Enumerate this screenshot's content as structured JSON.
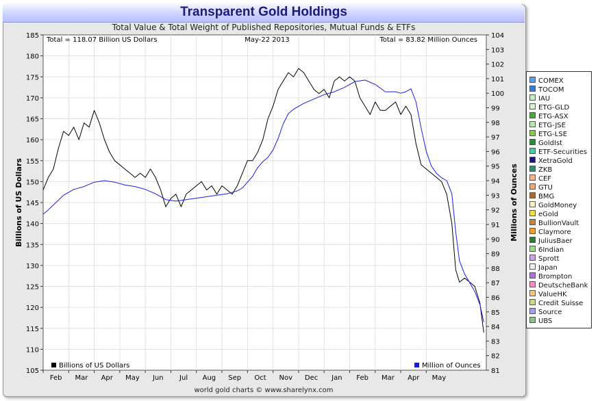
{
  "title": "Transparent Gold Holdings",
  "subtitle": "Total Value & Total Weight of Published Repositories, Mutual Funds & ETFs",
  "footer": "world gold charts © www.sharelynx.com",
  "chart_data": {
    "type": "line",
    "total_value_label": "Total = 118.07 Billion US Dollars",
    "date_label": "May-22 2013",
    "total_weight_label": "Total = 83.82 Million Ounces",
    "x_months": [
      "Feb",
      "Mar",
      "Apr",
      "May",
      "Jun",
      "Jul",
      "Aug",
      "Sep",
      "Oct",
      "Nov",
      "Dec",
      "Jan",
      "Feb",
      "Mar",
      "Apr",
      "May"
    ],
    "x_range_months": [
      0,
      17.35
    ],
    "left_axis": {
      "label": "Billions of US Dollars",
      "range": [
        105,
        185
      ],
      "ticks": [
        105,
        110,
        115,
        120,
        125,
        130,
        135,
        140,
        145,
        150,
        155,
        160,
        165,
        170,
        175,
        180,
        185
      ]
    },
    "right_axis": {
      "label": "Millions of Ounces",
      "range": [
        81,
        104
      ],
      "ticks": [
        81,
        82,
        83,
        84,
        85,
        86,
        87,
        88,
        89,
        90,
        91,
        92,
        93,
        94,
        95,
        96,
        97,
        98,
        99,
        100,
        101,
        102,
        103,
        104
      ]
    },
    "series": [
      {
        "name": "Billions of US Dollars",
        "color": "#000000",
        "axis": "left",
        "points": [
          [
            0.0,
            148
          ],
          [
            0.2,
            151
          ],
          [
            0.4,
            153
          ],
          [
            0.6,
            158
          ],
          [
            0.8,
            162
          ],
          [
            1.0,
            161
          ],
          [
            1.2,
            163
          ],
          [
            1.4,
            160
          ],
          [
            1.6,
            164
          ],
          [
            1.8,
            163
          ],
          [
            2.0,
            167
          ],
          [
            2.2,
            164
          ],
          [
            2.4,
            160
          ],
          [
            2.6,
            157
          ],
          [
            2.8,
            155
          ],
          [
            3.0,
            154
          ],
          [
            3.2,
            153
          ],
          [
            3.4,
            152
          ],
          [
            3.6,
            151
          ],
          [
            3.8,
            152
          ],
          [
            4.0,
            151
          ],
          [
            4.2,
            153
          ],
          [
            4.4,
            151
          ],
          [
            4.6,
            148
          ],
          [
            4.8,
            144
          ],
          [
            5.0,
            146
          ],
          [
            5.2,
            147
          ],
          [
            5.4,
            144
          ],
          [
            5.6,
            147
          ],
          [
            5.8,
            148
          ],
          [
            6.0,
            149
          ],
          [
            6.2,
            150
          ],
          [
            6.4,
            148
          ],
          [
            6.6,
            149
          ],
          [
            6.8,
            147
          ],
          [
            7.0,
            149
          ],
          [
            7.2,
            148
          ],
          [
            7.4,
            147
          ],
          [
            7.6,
            149
          ],
          [
            7.8,
            152
          ],
          [
            8.0,
            155
          ],
          [
            8.2,
            155
          ],
          [
            8.4,
            157
          ],
          [
            8.6,
            160
          ],
          [
            8.8,
            165
          ],
          [
            9.0,
            168
          ],
          [
            9.2,
            172
          ],
          [
            9.4,
            174
          ],
          [
            9.6,
            176
          ],
          [
            9.8,
            175
          ],
          [
            10.0,
            177
          ],
          [
            10.2,
            176
          ],
          [
            10.4,
            174
          ],
          [
            10.6,
            172
          ],
          [
            10.8,
            171
          ],
          [
            11.0,
            172
          ],
          [
            11.2,
            170
          ],
          [
            11.4,
            174
          ],
          [
            11.6,
            175
          ],
          [
            11.8,
            174
          ],
          [
            12.0,
            175
          ],
          [
            12.2,
            174
          ],
          [
            12.4,
            170
          ],
          [
            12.6,
            168
          ],
          [
            12.8,
            166
          ],
          [
            13.0,
            169
          ],
          [
            13.2,
            167
          ],
          [
            13.4,
            167
          ],
          [
            13.6,
            168
          ],
          [
            13.8,
            169
          ],
          [
            14.0,
            166
          ],
          [
            14.2,
            168
          ],
          [
            14.4,
            166
          ],
          [
            14.6,
            159
          ],
          [
            14.8,
            154
          ],
          [
            15.0,
            153
          ],
          [
            15.2,
            152
          ],
          [
            15.4,
            151
          ],
          [
            15.6,
            150
          ],
          [
            15.8,
            147
          ],
          [
            16.0,
            140
          ],
          [
            16.15,
            129
          ],
          [
            16.3,
            126
          ],
          [
            16.5,
            127
          ],
          [
            16.7,
            126
          ],
          [
            16.9,
            125
          ],
          [
            17.1,
            121
          ],
          [
            17.25,
            114
          ]
        ]
      },
      {
        "name": "Million of Ounces",
        "color": "#1a1ae6",
        "axis": "right",
        "points": [
          [
            0.0,
            91.7
          ],
          [
            0.2,
            92.0
          ],
          [
            0.5,
            92.5
          ],
          [
            0.8,
            93.0
          ],
          [
            1.2,
            93.4
          ],
          [
            1.6,
            93.6
          ],
          [
            2.0,
            93.9
          ],
          [
            2.4,
            94.0
          ],
          [
            2.8,
            93.9
          ],
          [
            3.2,
            93.7
          ],
          [
            3.6,
            93.6
          ],
          [
            4.0,
            93.4
          ],
          [
            4.4,
            93.1
          ],
          [
            4.8,
            92.7
          ],
          [
            5.2,
            92.6
          ],
          [
            5.6,
            92.7
          ],
          [
            6.0,
            92.8
          ],
          [
            6.4,
            92.9
          ],
          [
            6.8,
            93.0
          ],
          [
            7.2,
            93.1
          ],
          [
            7.6,
            93.3
          ],
          [
            7.8,
            93.5
          ],
          [
            8.0,
            93.9
          ],
          [
            8.2,
            94.3
          ],
          [
            8.4,
            94.9
          ],
          [
            8.6,
            95.3
          ],
          [
            8.8,
            95.6
          ],
          [
            9.0,
            96.1
          ],
          [
            9.2,
            96.9
          ],
          [
            9.4,
            97.9
          ],
          [
            9.6,
            98.6
          ],
          [
            9.8,
            98.9
          ],
          [
            10.2,
            99.3
          ],
          [
            10.6,
            99.6
          ],
          [
            11.0,
            99.9
          ],
          [
            11.4,
            100.1
          ],
          [
            11.8,
            100.4
          ],
          [
            12.2,
            100.8
          ],
          [
            12.6,
            100.9
          ],
          [
            13.0,
            100.6
          ],
          [
            13.4,
            100.1
          ],
          [
            13.8,
            100.1
          ],
          [
            14.0,
            100.0
          ],
          [
            14.2,
            100.1
          ],
          [
            14.4,
            100.3
          ],
          [
            14.6,
            99.4
          ],
          [
            14.8,
            97.6
          ],
          [
            15.0,
            96.0
          ],
          [
            15.2,
            95.0
          ],
          [
            15.4,
            94.5
          ],
          [
            15.6,
            94.2
          ],
          [
            15.8,
            94.0
          ],
          [
            16.0,
            93.1
          ],
          [
            16.15,
            90.5
          ],
          [
            16.3,
            88.5
          ],
          [
            16.5,
            87.6
          ],
          [
            16.7,
            87.0
          ],
          [
            16.9,
            86.4
          ],
          [
            17.1,
            85.5
          ],
          [
            17.25,
            84.3
          ]
        ]
      }
    ]
  },
  "legend": [
    {
      "label": "COMEX",
      "color": "#5aa0e8"
    },
    {
      "label": "TOCOM",
      "color": "#3a7ad0"
    },
    {
      "label": "IAU",
      "color": "#c8ecc0"
    },
    {
      "label": "ETG-GLD",
      "color": "#d8f0d0"
    },
    {
      "label": "ETG-ASX",
      "color": "#4aa83a"
    },
    {
      "label": "ETG-JSE",
      "color": "#b8e8b0"
    },
    {
      "label": "ETG-LSE",
      "color": "#8acc40"
    },
    {
      "label": "GoldIst",
      "color": "#2e8a3e"
    },
    {
      "label": "ETF-Securities",
      "color": "#3ad0a0"
    },
    {
      "label": "XetraGold",
      "color": "#181870"
    },
    {
      "label": "ZKB",
      "color": "#2a9070"
    },
    {
      "label": "CEF",
      "color": "#f0b890"
    },
    {
      "label": "GTU",
      "color": "#f0a870"
    },
    {
      "label": "BMG",
      "color": "#a86a30"
    },
    {
      "label": "GoldMoney",
      "color": "#fff0c0"
    },
    {
      "label": "eGold",
      "color": "#f0e050"
    },
    {
      "label": "BullionVault",
      "color": "#c08a3a"
    },
    {
      "label": "Claymore",
      "color": "#f0a030"
    },
    {
      "label": "JuliusBaer",
      "color": "#2a8030"
    },
    {
      "label": "6Indian",
      "color": "#a0d890"
    },
    {
      "label": "Sprott",
      "color": "#d0a0f0"
    },
    {
      "label": "Japan",
      "color": "#f0f0f0"
    },
    {
      "label": "Brompton",
      "color": "#b070e0"
    },
    {
      "label": "DeutscheBank",
      "color": "#f090c0"
    },
    {
      "label": "ValueHK",
      "color": "#f0c880"
    },
    {
      "label": "Credit Suisse",
      "color": "#c8d890"
    },
    {
      "label": "Source",
      "color": "#a0a0f0"
    },
    {
      "label": "UBS",
      "color": "#90c090"
    }
  ]
}
